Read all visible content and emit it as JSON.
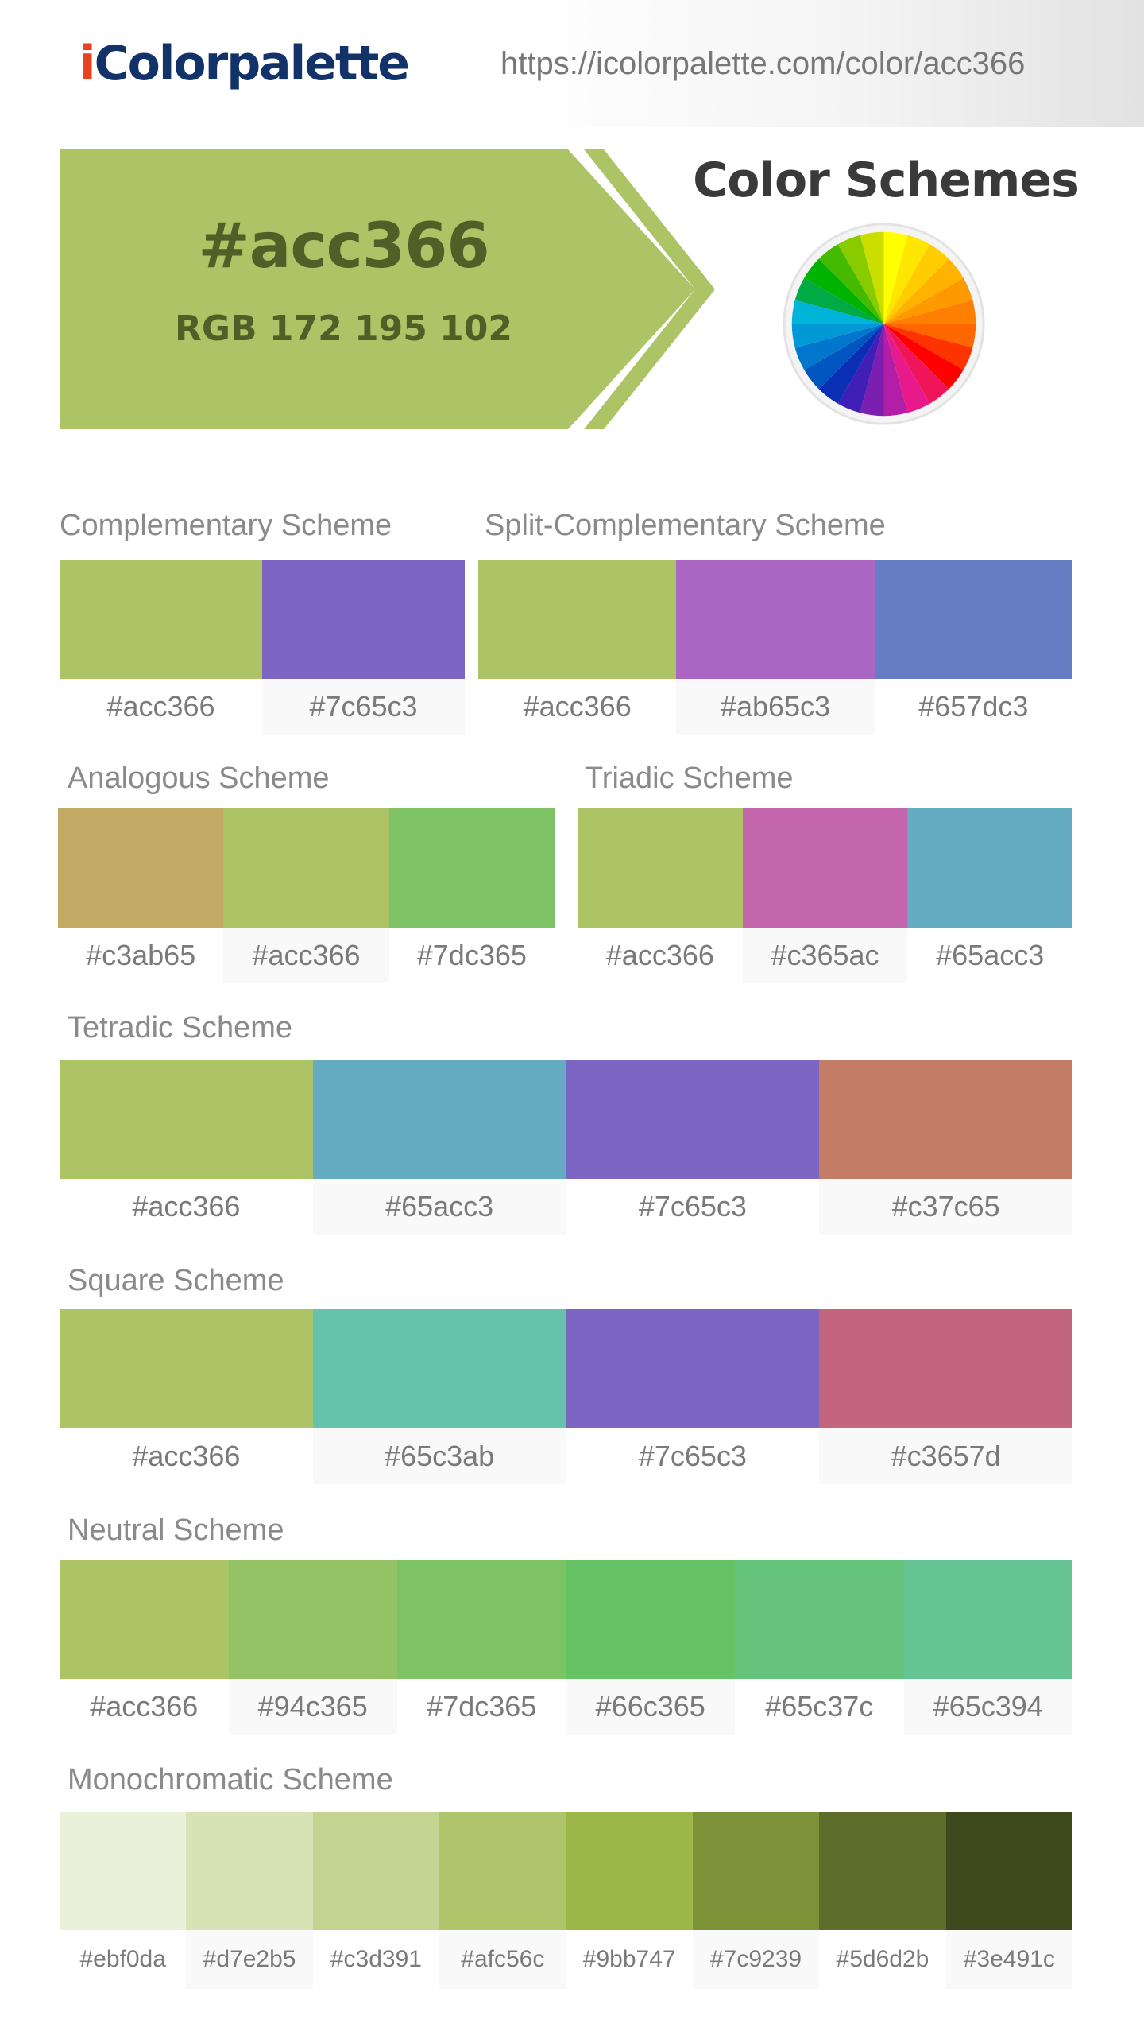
{
  "header": {
    "logo_i": "i",
    "logo_rest": "Colorpalette",
    "url": "https://icolorpalette.com/color/acc366"
  },
  "hero": {
    "hex": "#acc366",
    "rgb": "RGB 172 195 102",
    "color": "#acc366",
    "text_color": "#4e5f27"
  },
  "schemes_title": "Color Schemes",
  "color_wheel": {
    "colors": [
      "#ffff00",
      "#ffe600",
      "#ffcc00",
      "#ffb300",
      "#ff9900",
      "#ff8000",
      "#ff6600",
      "#ff3300",
      "#ff0000",
      "#f0155a",
      "#e8198b",
      "#b21fa6",
      "#7a1fb0",
      "#3f1fb5",
      "#0a2fb5",
      "#0055c0",
      "#0077cc",
      "#0099d6",
      "#00b3d9",
      "#00aa44",
      "#00b300",
      "#44bb00",
      "#88cc00",
      "#ccdd00"
    ]
  },
  "schemes": {
    "complementary": {
      "label": "Complementary Scheme",
      "colors": [
        "#acc366",
        "#7c65c3"
      ]
    },
    "split_complementary": {
      "label": "Split-Complementary Scheme",
      "colors": [
        "#acc366",
        "#ab65c3",
        "#657dc3"
      ]
    },
    "analogous": {
      "label": "Analogous Scheme",
      "colors": [
        "#c3ab65",
        "#acc366",
        "#7dc365"
      ]
    },
    "triadic": {
      "label": "Triadic Scheme",
      "colors": [
        "#acc366",
        "#c365ac",
        "#65acc3"
      ]
    },
    "tetradic": {
      "label": "Tetradic Scheme",
      "colors": [
        "#acc366",
        "#65acc3",
        "#7c65c3",
        "#c37c65"
      ]
    },
    "square": {
      "label": "Square Scheme",
      "colors": [
        "#acc366",
        "#65c3ab",
        "#7c65c3",
        "#c3657d"
      ]
    },
    "neutral": {
      "label": "Neutral Scheme",
      "colors": [
        "#acc366",
        "#94c365",
        "#7dc365",
        "#66c365",
        "#65c37c",
        "#65c394"
      ]
    },
    "monochromatic": {
      "label": "Monochromatic Scheme",
      "colors": [
        "#ebf0da",
        "#d7e2b5",
        "#c3d391",
        "#afc56c",
        "#9bb747",
        "#7c9239",
        "#5d6d2b",
        "#3e491c"
      ]
    }
  }
}
